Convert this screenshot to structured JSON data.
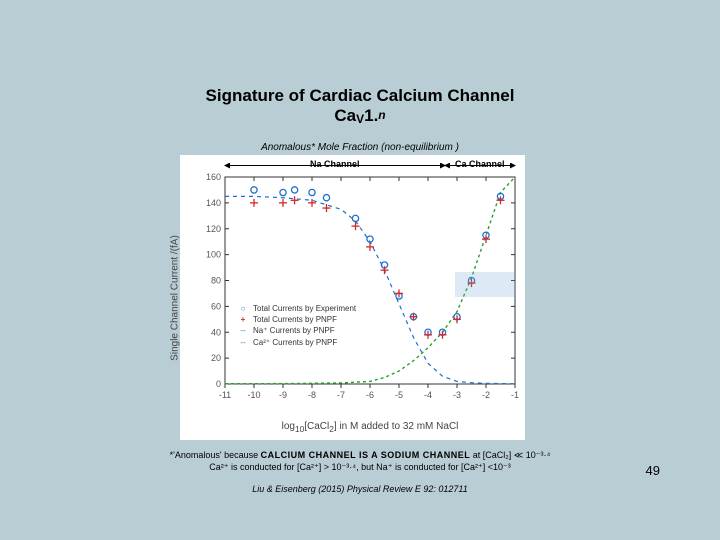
{
  "page_number": "49",
  "title": {
    "line1": "Signature of Cardiac Calcium Channel",
    "line2_main": "Ca",
    "line2_sub1": "V",
    "line2_mid": "1.",
    "line2_sub2": "n"
  },
  "subtitle_top": "Anomalous* Mole Fraction (non-equilibrium )",
  "top_labels": {
    "na": "Na Channel",
    "ca": "Ca Channel"
  },
  "axes": {
    "ylabel": "Single Channel Current /(fA)",
    "xlabel_pre": "log",
    "xlabel_sub": "10",
    "xlabel_rest": "[CaCl",
    "xlabel_sub2": "2",
    "xlabel_tail": "] in M added to 32 mM NaCl",
    "xlim": [
      -11,
      -1
    ],
    "ylim": [
      0,
      160
    ],
    "xticks": [
      -11,
      -10,
      -9,
      -8,
      -7,
      -6,
      -5,
      -4,
      -3,
      -2,
      -1
    ],
    "yticks": [
      0,
      20,
      40,
      60,
      80,
      100,
      120,
      140,
      160
    ],
    "grid_color": "#e9e9e9",
    "axis_color": "#333333",
    "tick_fontsize": 9
  },
  "legend": {
    "items": [
      {
        "sym": "o",
        "color": "#1f6fd0",
        "label": "Total Currents by Experiment"
      },
      {
        "sym": "+",
        "color": "#d62728",
        "label": "Total Currents by PNPF"
      },
      {
        "sym": "line",
        "color": "#1f6fd0",
        "dash": "3,3",
        "label": "Na⁺ Currents by PNPF"
      },
      {
        "sym": "line",
        "color": "#2aa02a",
        "dash": "2,2",
        "label": "Ca²⁺ Currents by PNPF"
      }
    ]
  },
  "series": {
    "exp_o": {
      "color": "#1f6fd0",
      "marker": "o",
      "marker_size": 5,
      "points": [
        [
          -10,
          150
        ],
        [
          -9,
          148
        ],
        [
          -8.6,
          150
        ],
        [
          -8,
          148
        ],
        [
          -7.5,
          144
        ],
        [
          -6.5,
          128
        ],
        [
          -6,
          112
        ],
        [
          -5.5,
          92
        ],
        [
          -5,
          68
        ],
        [
          -4.5,
          52
        ],
        [
          -4,
          40
        ],
        [
          -3.5,
          40
        ],
        [
          -3,
          52
        ],
        [
          -2.5,
          80
        ],
        [
          -2,
          115
        ],
        [
          -1.5,
          145
        ]
      ]
    },
    "pnpf_plus": {
      "color": "#d62728",
      "marker": "+",
      "marker_size": 6,
      "points": [
        [
          -10,
          140
        ],
        [
          -9,
          140
        ],
        [
          -8.6,
          142
        ],
        [
          -8,
          140
        ],
        [
          -7.5,
          136
        ],
        [
          -6.5,
          122
        ],
        [
          -6,
          106
        ],
        [
          -5.5,
          88
        ],
        [
          -5,
          70
        ],
        [
          -4.5,
          52
        ],
        [
          -4,
          38
        ],
        [
          -3.5,
          38
        ],
        [
          -3,
          50
        ],
        [
          -2.5,
          78
        ],
        [
          -2,
          112
        ],
        [
          -1.5,
          142
        ]
      ]
    },
    "na_line": {
      "color": "#1f6fd0",
      "dash": "4,4",
      "width": 1.2,
      "points": [
        [
          -11,
          145
        ],
        [
          -10,
          145
        ],
        [
          -9,
          144
        ],
        [
          -8,
          142
        ],
        [
          -7,
          135
        ],
        [
          -6.5,
          126
        ],
        [
          -6,
          110
        ],
        [
          -5.5,
          88
        ],
        [
          -5,
          62
        ],
        [
          -4.5,
          36
        ],
        [
          -4,
          16
        ],
        [
          -3.5,
          6
        ],
        [
          -3,
          2
        ],
        [
          -2.5,
          1
        ],
        [
          -2,
          0.5
        ],
        [
          -1,
          0.2
        ]
      ]
    },
    "ca_line": {
      "color": "#2aa02a",
      "dash": "3,3",
      "width": 1.4,
      "points": [
        [
          -11,
          0.2
        ],
        [
          -9,
          0.3
        ],
        [
          -7,
          0.8
        ],
        [
          -6,
          2
        ],
        [
          -5.5,
          5
        ],
        [
          -5,
          10
        ],
        [
          -4.5,
          18
        ],
        [
          -4,
          28
        ],
        [
          -3.5,
          40
        ],
        [
          -3,
          56
        ],
        [
          -2.5,
          82
        ],
        [
          -2,
          115
        ],
        [
          -1.5,
          148
        ],
        [
          -1,
          160
        ]
      ]
    }
  },
  "footnotes": {
    "line1_pre": "*'Anomalous' because ",
    "line1_bold": "CALCIUM CHANNEL IS A SODIUM CHANNEL",
    "line1_post": " at [CaCl₂] ≪ 10⁻³·⁴",
    "line2": "Ca²⁺ is conducted for [Ca²⁺] > 10⁻³·⁴, but Na⁺ is conducted for [Ca²⁺] <10⁻³"
  },
  "citation": "Liu & Eisenberg (2015) Physical Review E 92: 012711",
  "colors": {
    "page_bg": "#b9cdd5",
    "chart_bg": "#ffffff"
  }
}
